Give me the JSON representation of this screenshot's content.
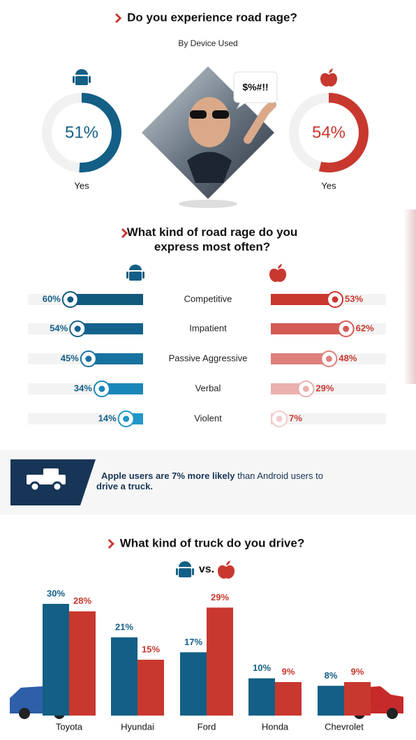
{
  "chart_data": [
    {
      "type": "donut",
      "title": "Do you experience road rage?",
      "subtitle": "By Device Used",
      "categories": [
        "Yes",
        "Yes"
      ],
      "values": [
        51,
        54
      ],
      "value_labels": [
        "51%",
        "54%"
      ],
      "colors": [
        "#135f86",
        "#c8382f"
      ],
      "ylim": [
        0,
        100
      ],
      "annotation": "$%#!!"
    },
    {
      "type": "diverging-bar",
      "title": "What kind of road rage do you express most often?",
      "categories": [
        "Competitive",
        "Impatient",
        "Passive Aggressive",
        "Verbal",
        "Violent"
      ],
      "xlim": [
        0,
        95
      ],
      "series": [
        {
          "side": "left",
          "values": [
            60,
            54,
            45,
            34,
            14
          ],
          "value_labels": [
            "60%",
            "54%",
            "45%",
            "34%",
            "14%"
          ],
          "color": "#135f86",
          "colors": [
            "#115a7e",
            "#13628c",
            "#1772a0",
            "#1b86b8",
            "#2196c9"
          ]
        },
        {
          "side": "right",
          "values": [
            53,
            62,
            48,
            29,
            7
          ],
          "value_labels": [
            "53%",
            "62%",
            "48%",
            "29%",
            "7%"
          ],
          "color": "#c8382f",
          "colors": [
            "#c8382f",
            "#d45a55",
            "#de807c",
            "#eab1ae",
            "#f2cccb"
          ]
        }
      ]
    },
    {
      "type": "grouped-bar",
      "title": "What kind of truck do you drive?",
      "subtitle": "vs.",
      "categories": [
        "Toyota",
        "Hyundai",
        "Ford",
        "Honda",
        "Chevrolet"
      ],
      "ylim": [
        0,
        30
      ],
      "series": [
        {
          "values": [
            30,
            21,
            17,
            10,
            8
          ],
          "value_labels": [
            "30%",
            "21%",
            "17%",
            "10%",
            "8%"
          ],
          "color": "#135f86"
        },
        {
          "values": [
            28,
            15,
            29,
            9,
            9
          ],
          "value_labels": [
            "28%",
            "15%",
            "29%",
            "9%",
            "9%"
          ],
          "color": "#c8382f"
        }
      ]
    }
  ],
  "callout": {
    "segments": [
      {
        "text": "Apple users are 7% more likely",
        "bold": true
      },
      {
        "text": " than Android users to ",
        "bold": false
      },
      {
        "text": "drive a truck.",
        "bold": true
      }
    ]
  }
}
